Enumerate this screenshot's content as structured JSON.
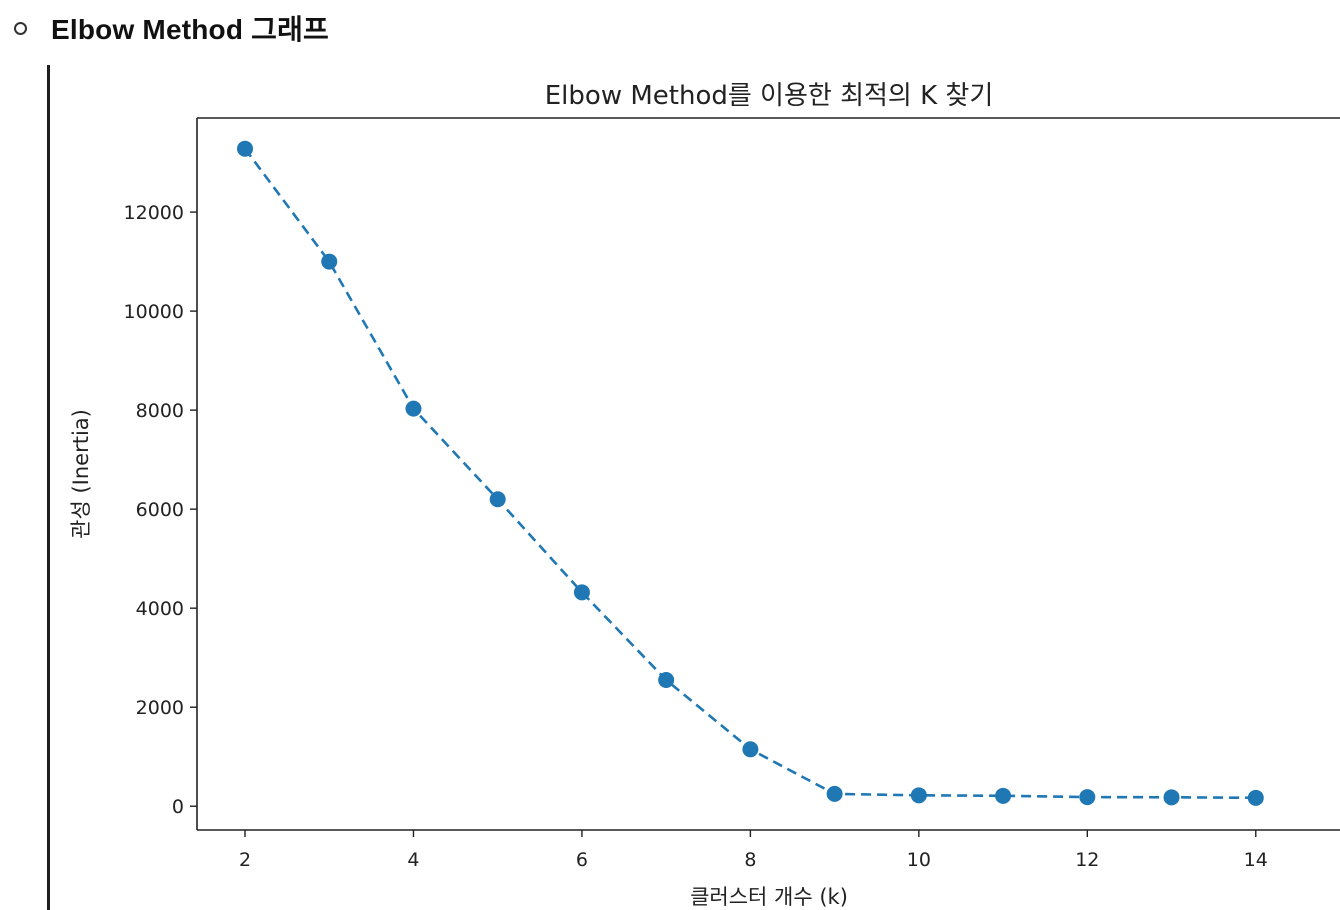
{
  "section": {
    "heading": "Elbow Method 그래프"
  },
  "chart_data": {
    "type": "line",
    "title": "Elbow Method를 이용한 최적의 K 찾기",
    "xlabel": "클러스터 개수 (k)",
    "ylabel": "관성 (Inertia)",
    "x": [
      2,
      3,
      4,
      5,
      6,
      7,
      8,
      9,
      10,
      11,
      12,
      13,
      14
    ],
    "series": [
      {
        "values": [
          13280,
          11000,
          8030,
          6200,
          4320,
          2550,
          1150,
          250,
          220,
          210,
          185,
          180,
          170
        ],
        "line_style": "dashed",
        "marker": "circle",
        "color": "#1f77b4"
      }
    ],
    "xticks": [
      2,
      4,
      6,
      8,
      10,
      12,
      14
    ],
    "yticks": [
      0,
      2000,
      4000,
      6000,
      8000,
      10000,
      12000
    ],
    "xlim": [
      1.43,
      15
    ],
    "ylim": [
      -480,
      13900
    ],
    "grid": false,
    "legend": "none"
  }
}
